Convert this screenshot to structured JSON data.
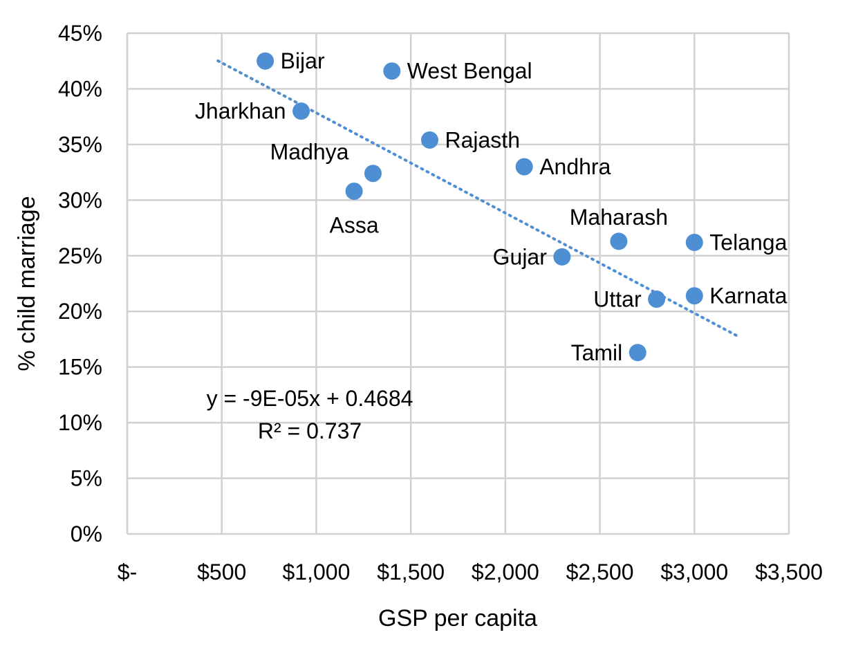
{
  "chart_data": {
    "type": "scatter",
    "xlabel": "GSP per capita",
    "ylabel": "% child marriage",
    "xlim": [
      0,
      3500
    ],
    "ylim": [
      0,
      0.45
    ],
    "grid": true,
    "x_ticks": [
      {
        "value": 0,
        "label": "$-"
      },
      {
        "value": 500,
        "label": "$500"
      },
      {
        "value": 1000,
        "label": "$1,000"
      },
      {
        "value": 1500,
        "label": "$1,500"
      },
      {
        "value": 2000,
        "label": "$2,000"
      },
      {
        "value": 2500,
        "label": "$2,500"
      },
      {
        "value": 3000,
        "label": "$3,000"
      },
      {
        "value": 3500,
        "label": "$3,500"
      }
    ],
    "y_ticks": [
      {
        "value": 0,
        "label": "0%"
      },
      {
        "value": 0.05,
        "label": "5%"
      },
      {
        "value": 0.1,
        "label": "10%"
      },
      {
        "value": 0.15,
        "label": "15%"
      },
      {
        "value": 0.2,
        "label": "20%"
      },
      {
        "value": 0.25,
        "label": "25%"
      },
      {
        "value": 0.3,
        "label": "30%"
      },
      {
        "value": 0.35,
        "label": "35%"
      },
      {
        "value": 0.4,
        "label": "40%"
      },
      {
        "value": 0.45,
        "label": "45%"
      }
    ],
    "points": [
      {
        "label": "Bijar",
        "x": 730,
        "y": 0.425,
        "label_side": "right"
      },
      {
        "label": "West Bengal",
        "x": 1400,
        "y": 0.416,
        "label_side": "right"
      },
      {
        "label": "Jharkhan",
        "x": 920,
        "y": 0.38,
        "label_side": "left"
      },
      {
        "label": "Rajasth",
        "x": 1600,
        "y": 0.354,
        "label_side": "right"
      },
      {
        "label": "Madhya",
        "x": 1300,
        "y": 0.324,
        "label_side": "above-left"
      },
      {
        "label": "Assa",
        "x": 1200,
        "y": 0.308,
        "label_side": "below"
      },
      {
        "label": "Andhra",
        "x": 2100,
        "y": 0.33,
        "label_side": "right"
      },
      {
        "label": "Maharash",
        "x": 2600,
        "y": 0.263,
        "label_side": "above"
      },
      {
        "label": "Telanga",
        "x": 3000,
        "y": 0.262,
        "label_side": "right"
      },
      {
        "label": "Gujar",
        "x": 2300,
        "y": 0.249,
        "label_side": "left"
      },
      {
        "label": "Karnata",
        "x": 3000,
        "y": 0.214,
        "label_side": "right"
      },
      {
        "label": "Uttar",
        "x": 2800,
        "y": 0.211,
        "label_side": "left"
      },
      {
        "label": "Tamil",
        "x": 2700,
        "y": 0.163,
        "label_side": "left"
      }
    ],
    "trendline": {
      "type": "linear",
      "slope": -9e-05,
      "intercept": 0.4684,
      "x_range": [
        480,
        3230
      ],
      "equation": "y = -9E-05x + 0.4684",
      "r_squared": "R² = 0.737"
    },
    "colors": {
      "marker": "#4e8fd4",
      "grid": "#d0d0d0"
    }
  }
}
